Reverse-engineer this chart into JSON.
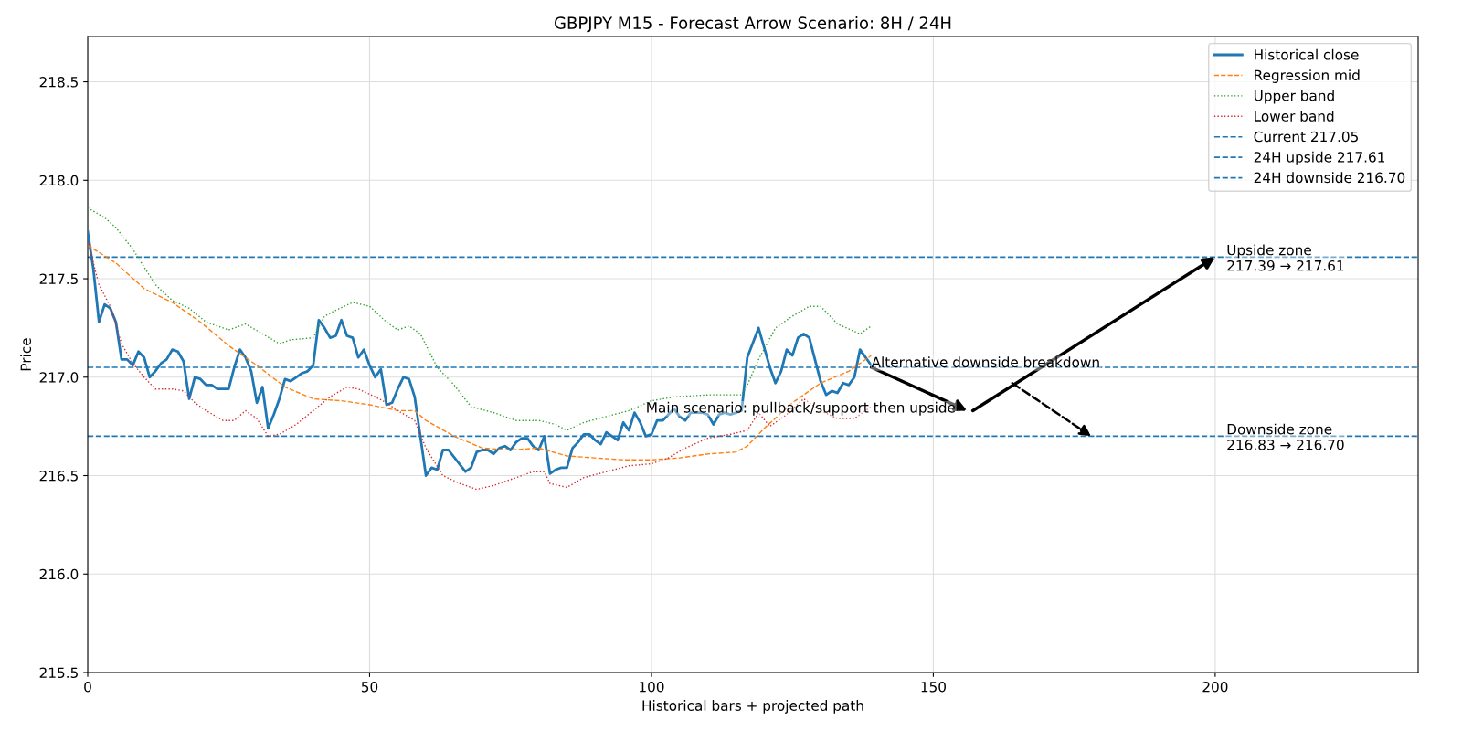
{
  "chart_data": {
    "type": "line",
    "title": "GBPJPY M15 - Forecast Arrow Scenario: 8H / 24H",
    "xlabel": "Historical bars + projected path",
    "ylabel": "Price",
    "xlim": [
      0,
      236
    ],
    "ylim": [
      215.5,
      218.73
    ],
    "xticks": [
      0,
      50,
      100,
      150,
      200
    ],
    "yticks": [
      215.5,
      {
        "value": 216,
        "label": "216.0"
      },
      216.5,
      {
        "value": 217,
        "label": "217.0"
      },
      217.5,
      {
        "value": 218,
        "label": "218.0"
      },
      218.5
    ],
    "grid": true,
    "legend": "top right",
    "series": [
      {
        "name": "Historical close",
        "color": "#1f77b4",
        "line_style": "solid",
        "x": [
          0,
          1,
          2,
          3,
          4,
          5,
          6,
          7,
          8,
          9,
          10,
          11,
          12,
          13,
          14,
          15,
          16,
          17,
          18,
          19,
          20,
          21,
          22,
          23,
          24,
          25,
          26,
          27,
          28,
          29,
          30,
          31,
          32,
          33,
          34,
          35,
          36,
          37,
          38,
          39,
          40,
          41,
          42,
          43,
          44,
          45,
          46,
          47,
          48,
          49,
          50,
          51,
          52,
          53,
          54,
          55,
          56,
          57,
          58,
          59,
          60,
          61,
          62,
          63,
          64,
          67,
          68,
          69,
          70,
          71,
          72,
          73,
          74,
          75,
          76,
          77,
          78,
          79,
          80,
          81,
          82,
          83,
          84,
          85,
          86,
          87,
          88,
          89,
          90,
          91,
          92,
          93,
          94,
          95,
          96,
          97,
          98,
          99,
          100,
          101,
          102,
          103,
          104,
          105,
          106,
          107,
          109,
          110,
          111,
          112,
          113,
          114,
          115,
          116,
          117,
          119,
          120,
          121,
          122,
          123,
          124,
          125,
          126,
          127,
          128,
          129,
          130,
          131,
          132,
          133,
          134,
          135,
          136,
          137,
          139
        ],
        "values": [
          217.74,
          217.55,
          217.28,
          217.37,
          217.35,
          217.28,
          217.09,
          217.09,
          217.06,
          217.13,
          217.1,
          217.0,
          217.03,
          217.07,
          217.09,
          217.14,
          217.13,
          217.08,
          216.89,
          217.0,
          216.99,
          216.96,
          216.96,
          216.94,
          216.94,
          216.94,
          217.05,
          217.14,
          217.1,
          217.03,
          216.87,
          216.95,
          216.74,
          216.81,
          216.89,
          216.99,
          216.98,
          217.0,
          217.02,
          217.03,
          217.06,
          217.29,
          217.25,
          217.2,
          217.21,
          217.29,
          217.21,
          217.2,
          217.1,
          217.14,
          217.06,
          217.0,
          217.04,
          216.86,
          216.87,
          216.94,
          217.0,
          216.99,
          216.9,
          216.7,
          216.5,
          216.54,
          216.53,
          216.63,
          216.63,
          216.52,
          216.54,
          216.62,
          216.63,
          216.63,
          216.61,
          216.64,
          216.65,
          216.63,
          216.67,
          216.69,
          216.69,
          216.65,
          216.63,
          216.7,
          216.51,
          216.53,
          216.54,
          216.54,
          216.64,
          216.67,
          216.71,
          216.71,
          216.68,
          216.66,
          216.72,
          216.7,
          216.68,
          216.77,
          216.73,
          216.82,
          216.77,
          216.7,
          216.71,
          216.78,
          216.78,
          216.81,
          216.84,
          216.8,
          216.78,
          216.82,
          216.82,
          216.81,
          216.76,
          216.81,
          216.82,
          216.81,
          216.82,
          216.83,
          217.1,
          217.25,
          217.15,
          217.05,
          216.97,
          217.03,
          217.14,
          217.11,
          217.2,
          217.22,
          217.2,
          217.09,
          216.98,
          216.91,
          216.93,
          216.92,
          216.97,
          216.96,
          217.0,
          217.14,
          217.06
        ]
      },
      {
        "name": "Regression mid",
        "color": "#ff7f0e",
        "line_style": "dashed",
        "x": [
          0,
          5,
          10,
          15,
          20,
          25,
          30,
          35,
          40,
          45,
          50,
          55,
          58,
          60,
          65,
          70,
          75,
          80,
          85,
          90,
          95,
          100,
          105,
          110,
          115,
          117,
          120,
          125,
          130,
          135,
          139
        ],
        "values": [
          217.67,
          217.58,
          217.45,
          217.38,
          217.28,
          217.16,
          217.06,
          216.95,
          216.89,
          216.88,
          216.86,
          216.83,
          216.83,
          216.78,
          216.7,
          216.64,
          216.63,
          216.64,
          216.6,
          216.59,
          216.58,
          216.58,
          216.59,
          216.61,
          216.62,
          216.65,
          216.74,
          216.87,
          216.97,
          217.03,
          217.11
        ]
      },
      {
        "name": "Upper band",
        "color": "#2ca02c",
        "line_style": "dotted",
        "x": [
          0,
          3,
          5,
          8,
          12,
          15,
          18,
          21,
          25,
          28,
          31,
          34,
          36,
          40,
          42,
          44,
          47,
          50,
          53,
          55,
          57,
          59,
          62,
          65,
          68,
          72,
          76,
          80,
          83,
          85,
          88,
          92,
          96,
          100,
          104,
          110,
          116,
          117,
          119,
          122,
          125,
          128,
          130,
          133,
          137,
          139
        ],
        "values": [
          217.86,
          217.81,
          217.76,
          217.65,
          217.47,
          217.39,
          217.35,
          217.28,
          217.24,
          217.27,
          217.22,
          217.17,
          217.19,
          217.2,
          217.31,
          217.34,
          217.38,
          217.36,
          217.28,
          217.24,
          217.26,
          217.22,
          217.05,
          216.96,
          216.85,
          216.82,
          216.78,
          216.78,
          216.76,
          216.73,
          216.77,
          216.8,
          216.83,
          216.88,
          216.9,
          216.91,
          216.91,
          216.96,
          217.09,
          217.25,
          217.31,
          217.36,
          217.36,
          217.27,
          217.22,
          217.26
        ]
      },
      {
        "name": "Lower band",
        "color": "#d62728",
        "line_style": "dotted",
        "x": [
          0,
          2,
          4,
          6,
          8,
          10,
          12,
          15,
          17,
          19,
          21,
          24,
          26,
          28,
          30,
          32,
          34,
          37,
          40,
          43,
          46,
          48,
          51,
          53,
          55,
          58,
          60,
          63,
          66,
          69,
          72,
          76,
          79,
          81,
          82,
          85,
          88,
          92,
          96,
          100,
          103,
          106,
          110,
          114,
          117,
          119,
          121,
          124,
          127,
          130,
          133,
          136,
          139
        ],
        "values": [
          217.69,
          217.47,
          217.36,
          217.17,
          217.07,
          217.0,
          216.94,
          216.94,
          216.93,
          216.87,
          216.83,
          216.78,
          216.78,
          216.83,
          216.79,
          216.7,
          216.71,
          216.76,
          216.83,
          216.9,
          216.95,
          216.94,
          216.9,
          216.87,
          216.83,
          216.78,
          216.64,
          216.5,
          216.46,
          216.43,
          216.45,
          216.49,
          216.52,
          216.52,
          216.46,
          216.44,
          216.49,
          216.52,
          216.55,
          216.56,
          216.59,
          216.64,
          216.69,
          216.71,
          216.73,
          216.82,
          216.75,
          216.81,
          216.89,
          216.83,
          216.79,
          216.79,
          216.85
        ]
      },
      {
        "color": "#000000",
        "line_style": "solid",
        "x": [
          139,
          156
        ],
        "values": [
          217.05,
          216.83
        ]
      },
      {
        "color": "#000000",
        "line_style": "solid",
        "x": [
          157,
          200
        ],
        "values": [
          216.83,
          217.61
        ]
      },
      {
        "color": "#000000",
        "line_style": "dashed",
        "x": [
          164,
          178
        ],
        "values": [
          216.97,
          216.7
        ]
      }
    ],
    "ref_lines": [
      {
        "axis": "y",
        "value": 217.05,
        "label": "Current 217.05",
        "color": "#1f77b4",
        "line_style": "dashed"
      },
      {
        "axis": "y",
        "value": 217.61,
        "label": "24H upside 217.61",
        "color": "#1f77b4",
        "line_style": "dashed"
      },
      {
        "axis": "y",
        "value": 216.7,
        "label": "24H downside 216.70",
        "color": "#1f77b4",
        "line_style": "dashed"
      }
    ],
    "annotations": [
      {
        "text": "Main scenario: pullback/support then upside",
        "x": 99,
        "y": 216.84
      },
      {
        "text": "Alternative downside breakdown",
        "x": 139,
        "y": 217.07
      },
      {
        "text": "Upside zone\n217.39 → 217.61",
        "x": 202,
        "y": 217.6
      },
      {
        "text": "Downside zone\n216.83 → 216.70",
        "x": 202,
        "y": 216.69
      }
    ]
  }
}
